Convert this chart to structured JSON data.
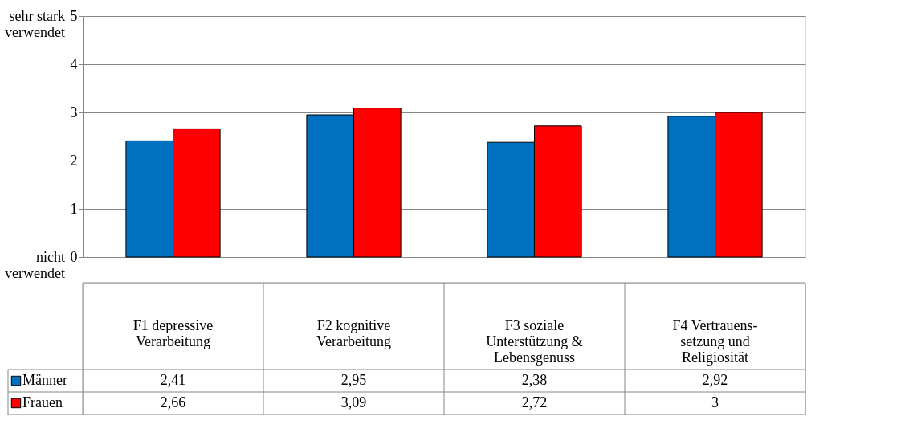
{
  "chart_data": {
    "type": "bar",
    "categories": [
      "F1 depressive Verarbeitung",
      "F2 kognitive Verarbeitung",
      "F3 soziale Unterstützung & Lebensgenuss",
      "F4 Vertrauens-setzung und Religiosität"
    ],
    "series": [
      {
        "name": "Männer",
        "color": "#0070c0",
        "values": [
          2.41,
          2.95,
          2.38,
          2.92
        ],
        "value_labels": [
          "2,41",
          "2,95",
          "2,38",
          "2,92"
        ]
      },
      {
        "name": "Frauen",
        "color": "#ff0000",
        "values": [
          2.66,
          3.09,
          2.72,
          3
        ],
        "value_labels": [
          "2,66",
          "3,09",
          "2,72",
          "3"
        ]
      }
    ],
    "ylim": [
      0,
      5
    ],
    "yticks": [
      0,
      1,
      2,
      3,
      4,
      5
    ],
    "grid": "y",
    "legend": "bottom",
    "annotations": [
      "sehr stark verwendet",
      "nicht verwendet"
    ]
  }
}
